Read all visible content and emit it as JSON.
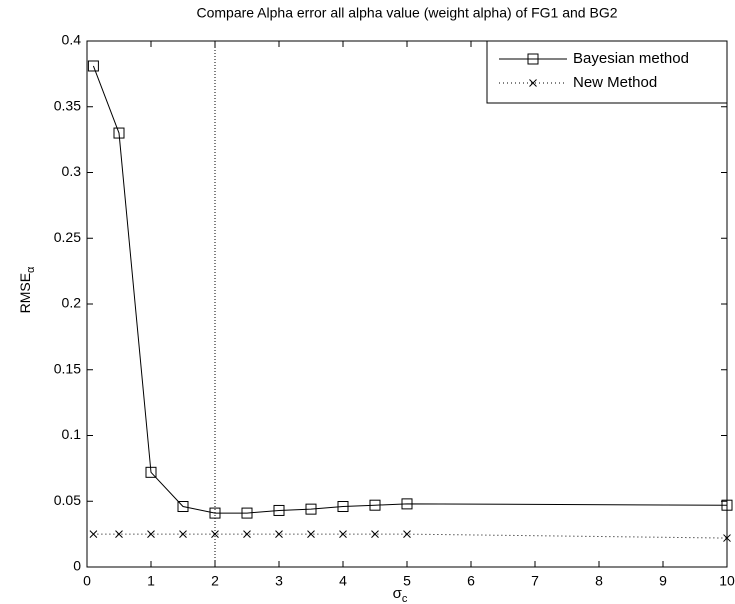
{
  "chart_data": {
    "type": "line",
    "title": "Compare Alpha error all alpha value (weight alpha) of FG1 and BG2",
    "x_label": {
      "base": "σ",
      "sub": "c"
    },
    "y_label": {
      "base": "RMSE",
      "sub": "α"
    },
    "xlim": [
      0,
      10
    ],
    "xticks": [
      0,
      1,
      2,
      3,
      4,
      5,
      6,
      7,
      8,
      9,
      10
    ],
    "ylim": [
      0,
      0.4
    ],
    "yticks": [
      0,
      0.05,
      0.1,
      0.15,
      0.2,
      0.25,
      0.3,
      0.35,
      0.4
    ],
    "vlines": [
      2
    ],
    "legend": "upper right",
    "series": [
      {
        "name": "Bayesian method",
        "color": "#000000",
        "marker": "square",
        "linestyle": "solid",
        "x": [
          0.1,
          0.5,
          1,
          1.5,
          2,
          2.5,
          3,
          3.5,
          4,
          4.5,
          5,
          10
        ],
        "values": [
          0.381,
          0.33,
          0.072,
          0.046,
          0.041,
          0.041,
          0.043,
          0.044,
          0.046,
          0.047,
          0.048,
          0.047
        ]
      },
      {
        "name": "New Method",
        "color": "#000000",
        "marker": "x",
        "linestyle": "dotted",
        "x": [
          0.1,
          0.5,
          1,
          1.5,
          2,
          2.5,
          3,
          3.5,
          4,
          4.5,
          5,
          10
        ],
        "values": [
          0.025,
          0.025,
          0.025,
          0.025,
          0.025,
          0.025,
          0.025,
          0.025,
          0.025,
          0.025,
          0.025,
          0.022
        ]
      }
    ]
  }
}
